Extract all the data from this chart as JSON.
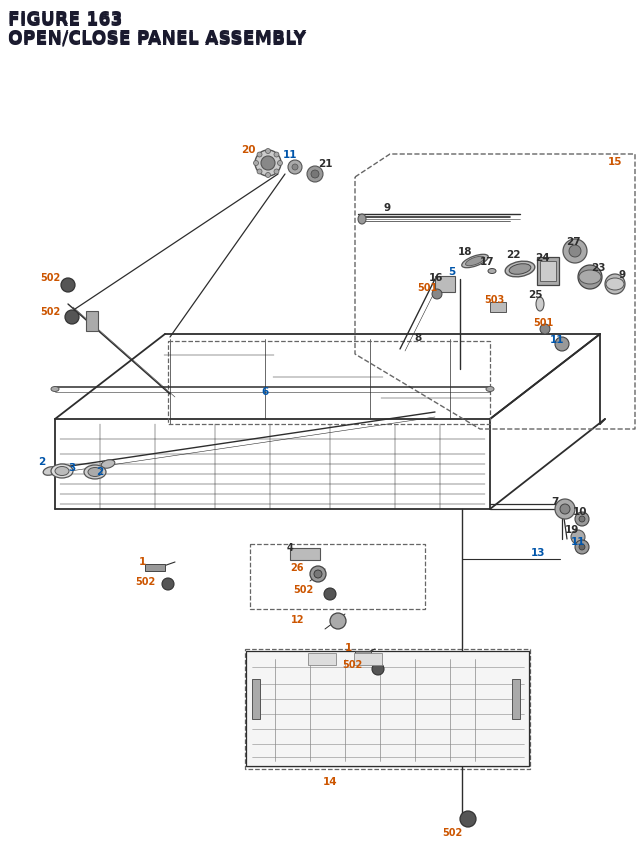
{
  "title_line1": "FIGURE 163",
  "title_line2": "OPEN/CLOSE PANEL ASSEMBLY",
  "title_color": "#1a1a2e",
  "title_fontsize": 12.5,
  "bg_color": "#ffffff",
  "line_color": "#2d2d2d",
  "dashed_color": "#666666",
  "orange_color": "#cc5500",
  "blue_color": "#0055aa",
  "dark_color": "#1a1a1a"
}
